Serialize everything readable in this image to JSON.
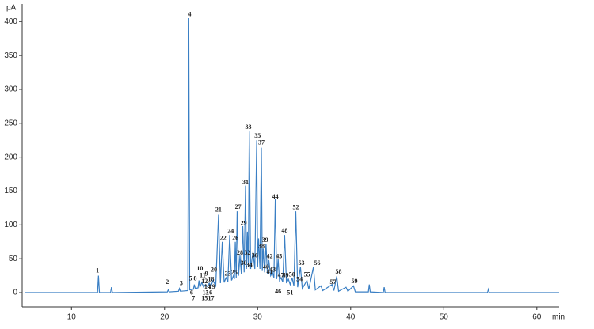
{
  "chart_data": {
    "type": "line",
    "y_label": "pA",
    "x_label": "min",
    "xlim": [
      4.7,
      62.4
    ],
    "ylim": [
      -21,
      426
    ],
    "xticks": [
      10,
      20,
      30,
      40,
      50,
      60
    ],
    "yticks": [
      0,
      50,
      100,
      150,
      200,
      250,
      300,
      350,
      400
    ],
    "series": [
      {
        "color": "#3a7fc4",
        "x": [
          5,
          12.8,
          12.9,
          13.0,
          14.2,
          14.3,
          14.4,
          20.3,
          20.4,
          20.5,
          21.5,
          21.6,
          21.7,
          22.5,
          22.6,
          22.7,
          23.1,
          23.2,
          23.3,
          23.6,
          23.7,
          23.8,
          24.0,
          24.2,
          24.4,
          24.6,
          24.8,
          25.0,
          25.2,
          25.5,
          25.8,
          26.0,
          26.2,
          26.4,
          26.6,
          26.8,
          27.0,
          27.2,
          27.4,
          27.5,
          27.6,
          27.7,
          27.8,
          27.95,
          28.1,
          28.25,
          28.4,
          28.55,
          28.7,
          28.8,
          28.9,
          29.0,
          29.1,
          29.25,
          29.5,
          29.7,
          29.9,
          30.0,
          30.1,
          30.25,
          30.4,
          30.5,
          30.6,
          30.75,
          30.9,
          31.05,
          31.2,
          31.4,
          31.6,
          31.75,
          31.9,
          32.05,
          32.2,
          32.35,
          32.5,
          32.7,
          32.9,
          33.1,
          33.3,
          33.5,
          33.7,
          33.9,
          34.1,
          34.3,
          34.6,
          34.8,
          35.3,
          35.5,
          36.0,
          36.2,
          36.8,
          37.0,
          38.0,
          38.2,
          38.5,
          38.7,
          39.5,
          39.7,
          40.3,
          40.5,
          41.9,
          42.0,
          42.1,
          43.5,
          43.6,
          43.7,
          54.7,
          54.8,
          54.9,
          62.4
        ],
        "values": [
          0,
          0,
          25,
          0,
          0,
          8,
          0,
          1,
          4,
          1,
          2,
          6,
          2,
          3,
          405,
          4,
          5,
          12,
          6,
          7,
          18,
          8,
          15,
          8,
          12,
          9,
          14,
          10,
          18,
          10,
          115,
          14,
          75,
          15,
          22,
          16,
          85,
          18,
          25,
          20,
          75,
          22,
          120,
          25,
          55,
          28,
          98,
          30,
          158,
          35,
          90,
          38,
          238,
          35,
          60,
          35,
          225,
          38,
          80,
          35,
          214,
          32,
          65,
          30,
          72,
          28,
          48,
          25,
          30,
          22,
          138,
          20,
          50,
          18,
          22,
          16,
          85,
          14,
          20,
          12,
          22,
          10,
          120,
          8,
          38,
          6,
          18,
          5,
          38,
          4,
          10,
          3,
          12,
          3,
          24,
          2,
          8,
          2,
          10,
          1,
          1,
          12,
          1,
          0,
          8,
          0,
          0,
          5,
          0,
          0
        ]
      }
    ],
    "annotations": [
      {
        "text": "1",
        "x": 12.8,
        "y": 32
      },
      {
        "text": "2",
        "x": 20.3,
        "y": 15
      },
      {
        "text": "3",
        "x": 21.8,
        "y": 13
      },
      {
        "text": "4",
        "x": 22.7,
        "y": 410
      },
      {
        "text": "5",
        "x": 22.8,
        "y": 20
      },
      {
        "text": "8",
        "x": 23.3,
        "y": 20
      },
      {
        "text": "6",
        "x": 22.9,
        "y": -1
      },
      {
        "text": "7",
        "x": 23.1,
        "y": -9
      },
      {
        "text": "9",
        "x": 24.5,
        "y": 27
      },
      {
        "text": "10",
        "x": 23.8,
        "y": 35
      },
      {
        "text": "11",
        "x": 24.1,
        "y": 25
      },
      {
        "text": "12",
        "x": 24.3,
        "y": 16
      },
      {
        "text": "13",
        "x": 24.4,
        "y": -1
      },
      {
        "text": "14",
        "x": 24.6,
        "y": 8
      },
      {
        "text": "15",
        "x": 24.3,
        "y": -9
      },
      {
        "text": "16",
        "x": 24.8,
        "y": -1
      },
      {
        "text": "17",
        "x": 25.0,
        "y": -9
      },
      {
        "text": "18",
        "x": 25.0,
        "y": 19
      },
      {
        "text": "19",
        "x": 25.1,
        "y": 8
      },
      {
        "text": "20",
        "x": 25.3,
        "y": 33
      },
      {
        "text": "21",
        "x": 25.8,
        "y": 122
      },
      {
        "text": "22",
        "x": 26.3,
        "y": 80
      },
      {
        "text": "23",
        "x": 26.8,
        "y": 27
      },
      {
        "text": "24",
        "x": 27.1,
        "y": 90
      },
      {
        "text": "25",
        "x": 27.5,
        "y": 29
      },
      {
        "text": "26",
        "x": 27.6,
        "y": 80
      },
      {
        "text": "27",
        "x": 27.9,
        "y": 126
      },
      {
        "text": "28",
        "x": 28.1,
        "y": 58
      },
      {
        "text": "29",
        "x": 28.5,
        "y": 102
      },
      {
        "text": "30",
        "x": 28.5,
        "y": 43
      },
      {
        "text": "31",
        "x": 28.7,
        "y": 162
      },
      {
        "text": "32",
        "x": 28.9,
        "y": 58
      },
      {
        "text": "33",
        "x": 29.0,
        "y": 244
      },
      {
        "text": "34",
        "x": 29.1,
        "y": 40
      },
      {
        "text": "35",
        "x": 30.0,
        "y": 231
      },
      {
        "text": "36",
        "x": 29.7,
        "y": 54
      },
      {
        "text": "37",
        "x": 30.4,
        "y": 221
      },
      {
        "text": "38",
        "x": 30.4,
        "y": 68
      },
      {
        "text": "39",
        "x": 30.8,
        "y": 77
      },
      {
        "text": "40",
        "x": 30.9,
        "y": 37
      },
      {
        "text": "41",
        "x": 31.3,
        "y": 30
      },
      {
        "text": "42",
        "x": 31.3,
        "y": 53
      },
      {
        "text": "43",
        "x": 31.6,
        "y": 33
      },
      {
        "text": "44",
        "x": 31.9,
        "y": 141
      },
      {
        "text": "45",
        "x": 32.3,
        "y": 53
      },
      {
        "text": "46",
        "x": 32.2,
        "y": 1
      },
      {
        "text": "47",
        "x": 32.5,
        "y": 25
      },
      {
        "text": "48",
        "x": 32.9,
        "y": 91
      },
      {
        "text": "49",
        "x": 33.0,
        "y": 25
      },
      {
        "text": "50",
        "x": 33.7,
        "y": 26
      },
      {
        "text": "51",
        "x": 33.5,
        "y": -1
      },
      {
        "text": "52",
        "x": 34.1,
        "y": 125
      },
      {
        "text": "53",
        "x": 34.7,
        "y": 43
      },
      {
        "text": "54",
        "x": 34.5,
        "y": 19
      },
      {
        "text": "55",
        "x": 35.3,
        "y": 26
      },
      {
        "text": "56",
        "x": 36.4,
        "y": 43
      },
      {
        "text": "57",
        "x": 38.1,
        "y": 15
      },
      {
        "text": "58",
        "x": 38.7,
        "y": 30
      },
      {
        "text": "59",
        "x": 40.4,
        "y": 16
      }
    ]
  }
}
